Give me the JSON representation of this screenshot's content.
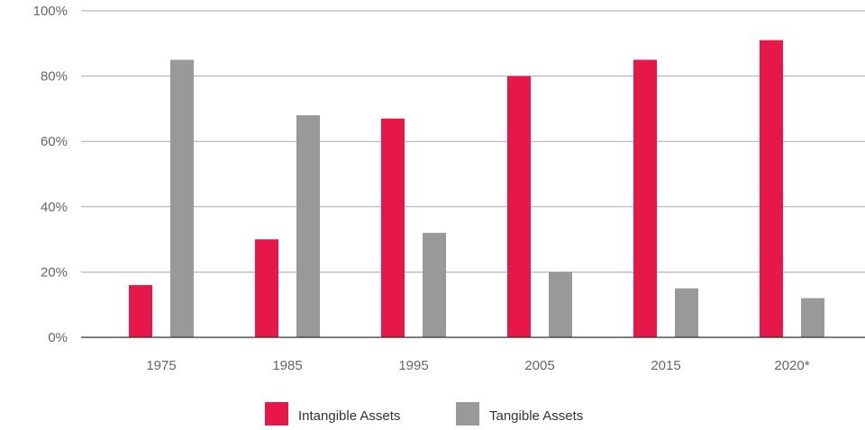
{
  "chart_data": {
    "type": "bar",
    "categories": [
      "1975",
      "1985",
      "1995",
      "2005",
      "2015",
      "2020*"
    ],
    "series": [
      {
        "name": "Intangible Assets",
        "values": [
          16,
          30,
          67,
          80,
          85,
          91
        ],
        "color": "#E8174A"
      },
      {
        "name": "Tangible Assets",
        "values": [
          85,
          68,
          32,
          20,
          15,
          12
        ],
        "color": "#999999"
      }
    ],
    "y_ticks": [
      "0%",
      "20%",
      "40%",
      "60%",
      "80%",
      "100%"
    ],
    "ylim": [
      0,
      100
    ],
    "grid": true,
    "legend_position": "bottom-center",
    "title": "",
    "xlabel": "",
    "ylabel": ""
  }
}
